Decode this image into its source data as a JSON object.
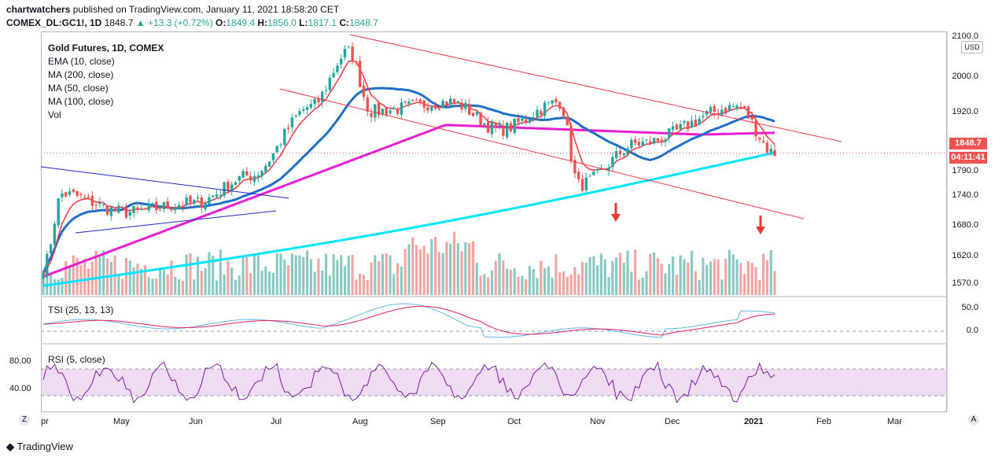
{
  "header": {
    "user": "chartwatchers",
    "published": "published on TradingView.com, January 11, 2021 18:58:20 CET",
    "symbol": "COMEX_DL:GC1!, 1D",
    "last": "1848.7",
    "change": "▲ +13.3 (+0.72%)",
    "o_label": "O:",
    "o_value": "1849.4",
    "h_label": "H:",
    "h_value": "1856.0",
    "l_label": "L:",
    "l_value": "1817.1",
    "c_label": "C:",
    "c_value": "1848.7"
  },
  "legend": {
    "title": "Gold Futures, 1D, COMEX",
    "items": [
      "EMA (10, close)",
      "MA (200, close)",
      "MA (50, close)",
      "MA (100, close)",
      "Vol"
    ]
  },
  "tsi_label": "TSI (25, 13, 13)",
  "rsi_label": "RSI (5, close)",
  "currency": "USD",
  "price_badge": "1848.7",
  "timer_badge": "04:11:41",
  "colors": {
    "up": "#26a69a",
    "down": "#ef5350",
    "ema10": "#f23645",
    "ma200": "#00e5ff",
    "ma50": "#1e6fc8",
    "ma100": "#e91ed2",
    "channel": "#f23645",
    "wedge": "#2424c8",
    "tsi": "#5fb6e6",
    "tsi_signal": "#e91e63",
    "rsi": "#7b1fa2",
    "rsi_band": "#e1bee7"
  },
  "y_ticks_main": [
    "2100.0",
    "2000.0",
    "1920.0",
    "1790.0",
    "1740.0",
    "1680.0",
    "1620.0",
    "1570.0"
  ],
  "y_ticks_tsi": [
    "50.0",
    "0.0"
  ],
  "y_ticks_rsi": [
    "80.00",
    "40.00"
  ],
  "x_ticks": [
    "pr",
    "May",
    "Jun",
    "Jul",
    "Aug",
    "Sep",
    "Oct",
    "Nov",
    "Dec",
    "2021",
    "Feb",
    "Mar"
  ],
  "footer": {
    "logo": "TradingView",
    "left_button": "Z",
    "right_button": "A"
  },
  "chart_data": {
    "type": "candlestick",
    "title": "Gold Futures, 1D, COMEX",
    "ylim": [
      1545,
      2110
    ],
    "key_points": [
      {
        "month": "Apr",
        "close": 1600
      },
      {
        "month": "early Apr",
        "close": 1760
      },
      {
        "month": "May",
        "close": 1720
      },
      {
        "month": "Jun",
        "close": 1740
      },
      {
        "month": "Jul",
        "close": 1800
      },
      {
        "month": "late Jul",
        "close": 1950
      },
      {
        "month": "early Aug",
        "close": 2070
      },
      {
        "month": "mid Aug",
        "close": 1940
      },
      {
        "month": "Sep",
        "close": 1960
      },
      {
        "month": "Oct",
        "close": 1900
      },
      {
        "month": "early Nov",
        "close": 1960
      },
      {
        "month": "late Nov",
        "close": 1780
      },
      {
        "month": "Dec",
        "close": 1870
      },
      {
        "month": "early Jan",
        "close": 1950
      },
      {
        "month": "Jan 11",
        "close": 1848.7
      }
    ],
    "series": [
      {
        "name": "EMA (10, close)"
      },
      {
        "name": "MA (200, close)"
      },
      {
        "name": "MA (50, close)"
      },
      {
        "name": "MA (100, close)"
      }
    ],
    "indicators": [
      "Vol",
      "TSI (25, 13, 13)",
      "RSI (5, close)"
    ]
  }
}
